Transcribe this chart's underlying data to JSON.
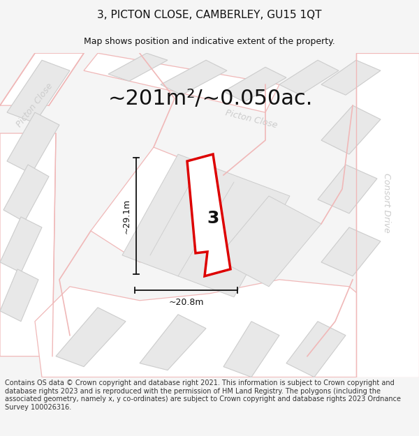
{
  "title": "3, PICTON CLOSE, CAMBERLEY, GU15 1QT",
  "subtitle": "Map shows position and indicative extent of the property.",
  "area_label": "~201m²/~0.050ac.",
  "property_number": "3",
  "dim_height": "~29.1m",
  "dim_width": "~20.8m",
  "footer": "Contains OS data © Crown copyright and database right 2021. This information is subject to Crown copyright and database rights 2023 and is reproduced with the permission of HM Land Registry. The polygons (including the associated geometry, namely x, y co-ordinates) are subject to Crown copyright and database rights 2023 Ordnance Survey 100026316.",
  "bg_color": "#f5f5f5",
  "map_bg": "#f2f2f2",
  "bld_fill": "#e8e8e8",
  "bld_stroke": "#cccccc",
  "road_fill": "#ffffff",
  "road_stroke": "#f0b8b8",
  "highlight_fill": "#ffffff",
  "highlight_stroke": "#dd0000",
  "street_color": "#cccccc",
  "title_fontsize": 11,
  "subtitle_fontsize": 9,
  "area_fontsize": 22,
  "footer_fontsize": 7,
  "dim_fontsize": 9
}
